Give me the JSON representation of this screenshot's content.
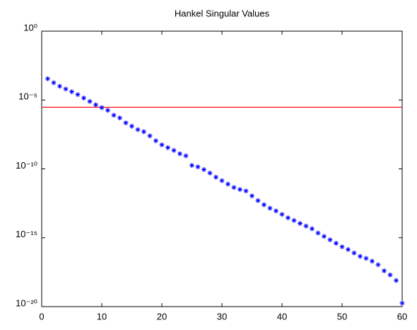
{
  "chart_data": {
    "type": "scatter",
    "title": "Hankel Singular Values",
    "log_y": true,
    "box": true,
    "marker": "asterisk",
    "x": [
      1,
      2,
      3,
      4,
      5,
      6,
      7,
      8,
      9,
      10,
      11,
      12,
      13,
      14,
      15,
      16,
      17,
      18,
      19,
      20,
      21,
      22,
      23,
      24,
      25,
      26,
      27,
      28,
      29,
      30,
      31,
      32,
      33,
      34,
      35,
      36,
      37,
      38,
      39,
      40,
      41,
      42,
      43,
      44,
      45,
      46,
      47,
      48,
      49,
      50,
      51,
      52,
      53,
      54,
      55,
      56,
      57,
      58,
      59,
      60
    ],
    "series": [
      {
        "color": "#0000ff",
        "values": [
          0.00035,
          0.00018,
          0.0001,
          6.3e-05,
          4e-05,
          2.5e-05,
          1.4e-05,
          7.9e-06,
          4.5e-06,
          2.8e-06,
          1.8e-06,
          7.9e-07,
          5e-07,
          2.2e-07,
          1.26e-07,
          7.1e-08,
          5e-08,
          2.5e-08,
          1.1e-08,
          5.6e-09,
          3.5e-09,
          2.2e-09,
          1.26e-09,
          8.9e-10,
          1.8e-10,
          1.4e-10,
          8.9e-11,
          5e-11,
          2.5e-11,
          1.4e-11,
          7.9e-12,
          4.5e-12,
          3.2e-12,
          2.5e-12,
          1.1e-12,
          5e-13,
          2.5e-13,
          1.4e-13,
          8.9e-14,
          5e-14,
          2.8e-14,
          1.8e-14,
          1.1e-14,
          7.1e-15,
          4.5e-15,
          2.2e-15,
          1.26e-15,
          7.1e-16,
          4e-16,
          2.2e-16,
          1.4e-16,
          7.9e-17,
          4.5e-17,
          3.2e-17,
          2e-17,
          1.1e-17,
          4e-18,
          2e-18,
          7.9e-19,
          1.8e-20
        ]
      }
    ],
    "reference_line": {
      "value": 3e-06,
      "color": "#ff0000"
    },
    "xlim": [
      0,
      60
    ],
    "xticks": [
      0,
      10,
      20,
      30,
      40,
      50,
      60
    ],
    "ylim": [
      1e-20,
      1
    ],
    "yticks": [
      {
        "value": 1e-20,
        "label": "10⁻²⁰"
      },
      {
        "value": 1e-15,
        "label": "10⁻¹⁵"
      },
      {
        "value": 1e-10,
        "label": "10⁻¹⁰"
      },
      {
        "value": 1e-05,
        "label": "10⁻⁵"
      },
      {
        "value": 1,
        "label": "10⁰"
      }
    ]
  }
}
